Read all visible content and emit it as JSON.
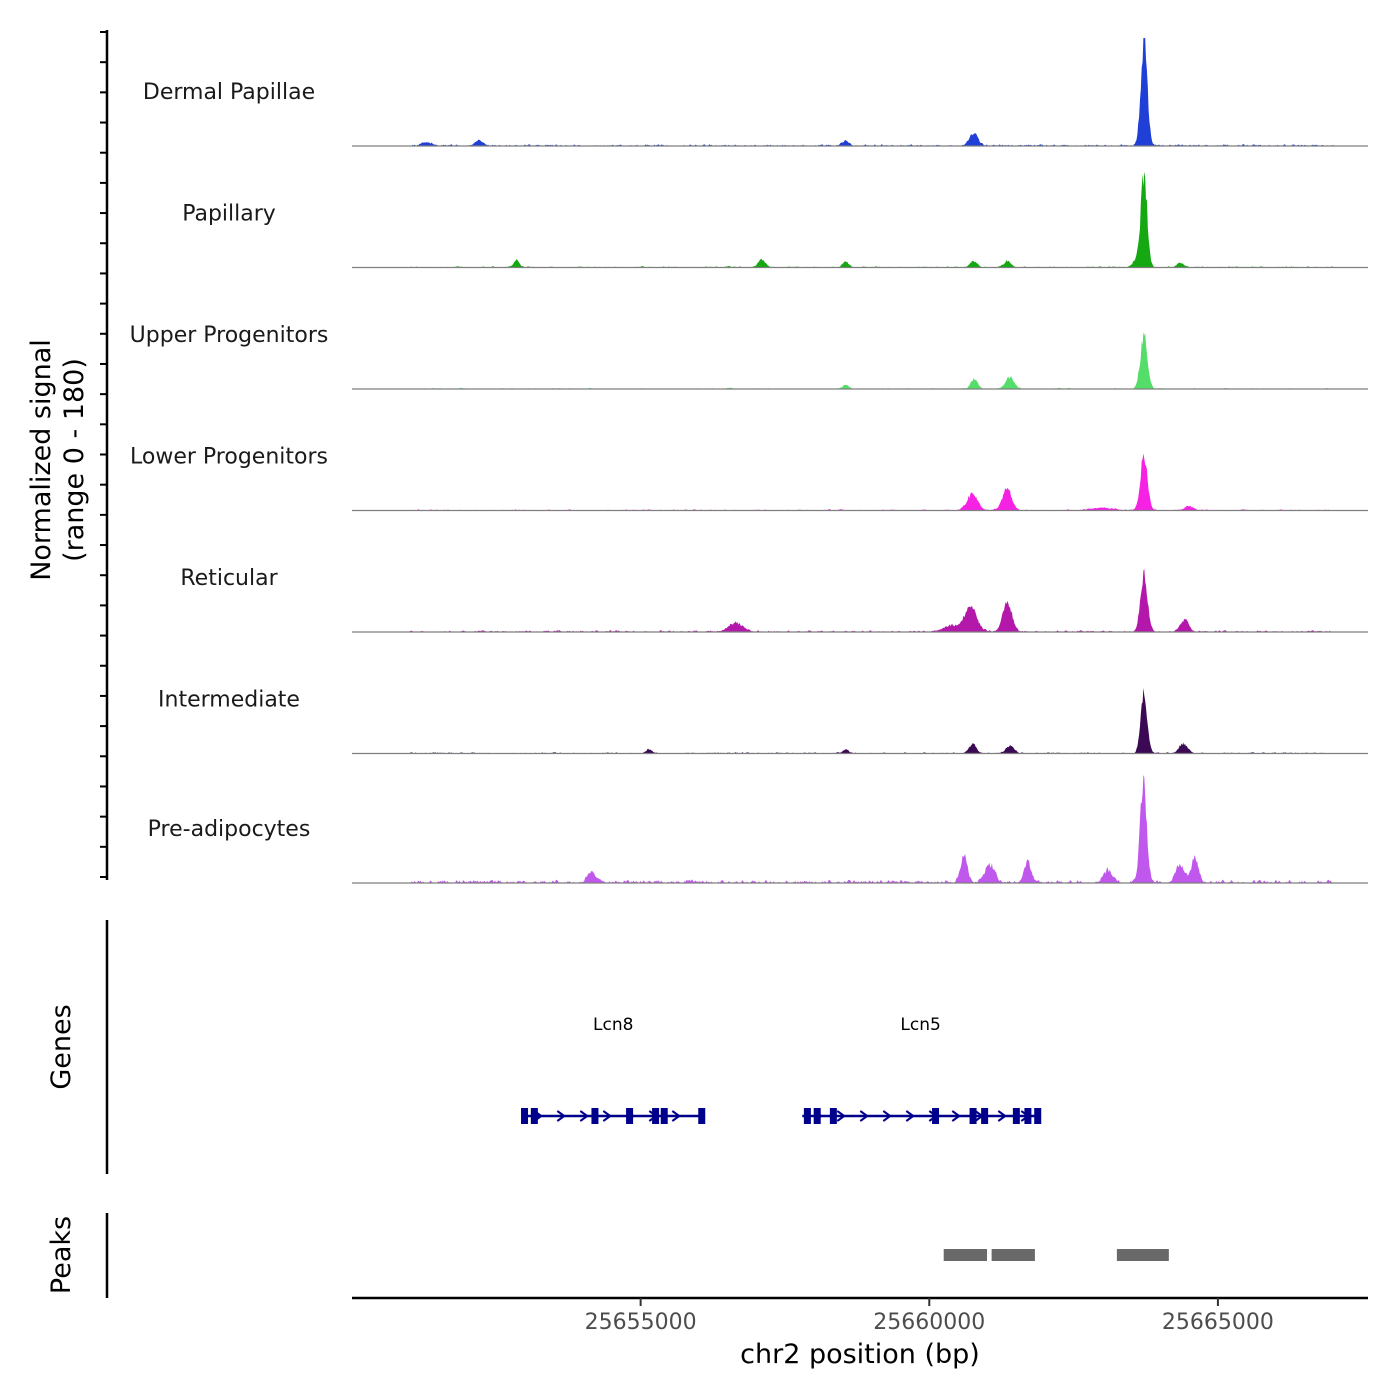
{
  "chart_data": {
    "type": "area",
    "title": "",
    "chromosome": "chr2",
    "xlabel": "chr2 position (bp)",
    "xlim": [
      25650000,
      25667600
    ],
    "xticks": [
      25655000,
      25660000,
      25665000
    ],
    "xtick_labels": [
      "25655000",
      "25660000",
      "25665000"
    ],
    "signal": {
      "ylabel_line1": "Normalized signal",
      "ylabel_line2": "(range 0 - 180)",
      "ylim": [
        0,
        180
      ],
      "tracks": [
        {
          "name": "Dermal Papillae",
          "color": "#1f3fd6",
          "peaks": [
            [
              25663720,
              180,
              55
            ],
            [
              25660770,
              22,
              70
            ],
            [
              25658550,
              8,
              60
            ],
            [
              25651300,
              6,
              80
            ],
            [
              25652200,
              8,
              70
            ]
          ],
          "noise": 4
        },
        {
          "name": "Papillary",
          "color": "#15a812",
          "peaks": [
            [
              25663720,
              150,
              55
            ],
            [
              25663580,
              12,
              60
            ],
            [
              25664350,
              8,
              60
            ],
            [
              25652850,
              12,
              50
            ],
            [
              25657100,
              12,
              60
            ],
            [
              25658550,
              10,
              50
            ],
            [
              25660770,
              10,
              60
            ],
            [
              25661350,
              10,
              60
            ]
          ],
          "noise": 3
        },
        {
          "name": "Upper Progenitors",
          "color": "#55dd6a",
          "peaks": [
            [
              25663720,
              90,
              60
            ],
            [
              25661400,
              20,
              70
            ],
            [
              25660780,
              16,
              60
            ],
            [
              25658550,
              6,
              50
            ]
          ],
          "noise": 2.5
        },
        {
          "name": "Lower Progenitors",
          "color": "#f522e4",
          "peaks": [
            [
              25663720,
              90,
              60
            ],
            [
              25661350,
              36,
              80
            ],
            [
              25660750,
              28,
              90
            ],
            [
              25663000,
              4,
              200
            ],
            [
              25664500,
              6,
              80
            ]
          ],
          "noise": 3
        },
        {
          "name": "Reticular",
          "color": "#b318ab",
          "peaks": [
            [
              25663720,
              95,
              60
            ],
            [
              25661350,
              48,
              80
            ],
            [
              25660720,
              42,
              100
            ],
            [
              25664420,
              20,
              70
            ],
            [
              25656650,
              14,
              120
            ],
            [
              25660400,
              10,
              150
            ]
          ],
          "noise": 4
        },
        {
          "name": "Intermediate",
          "color": "#3c0a55",
          "peaks": [
            [
              25663720,
              105,
              55
            ],
            [
              25660750,
              16,
              60
            ],
            [
              25661400,
              12,
              70
            ],
            [
              25664400,
              16,
              70
            ],
            [
              25658550,
              6,
              50
            ],
            [
              25655150,
              6,
              50
            ]
          ],
          "noise": 3
        },
        {
          "name": "Pre-adipocytes",
          "color": "#c058ee",
          "peaks": [
            [
              25663710,
              175,
              55
            ],
            [
              25664600,
              40,
              60
            ],
            [
              25664350,
              28,
              80
            ],
            [
              25660600,
              45,
              60
            ],
            [
              25661050,
              30,
              80
            ],
            [
              25661700,
              35,
              60
            ],
            [
              25663100,
              20,
              80
            ],
            [
              25654150,
              18,
              70
            ]
          ],
          "noise": 8
        }
      ]
    },
    "genes": {
      "label": "Genes",
      "color": "#00008b",
      "items": [
        {
          "name": "Lcn8",
          "start": 25652950,
          "end": 25656100,
          "strand": "+",
          "exons": [
            25652980,
            25653150,
            25654200,
            25654800,
            25655250,
            25655400,
            25656050
          ]
        },
        {
          "name": "Lcn5",
          "start": 25657800,
          "end": 25661900,
          "strand": "+",
          "exons": [
            25657880,
            25658050,
            25658330,
            25660100,
            25660750,
            25660950,
            25661500,
            25661700,
            25661870
          ]
        }
      ]
    },
    "peaks": {
      "label": "Peaks",
      "color": "#696969",
      "regions": [
        [
          25660250,
          25661000
        ],
        [
          25661080,
          25661830
        ],
        [
          25663250,
          25664150
        ]
      ]
    }
  }
}
